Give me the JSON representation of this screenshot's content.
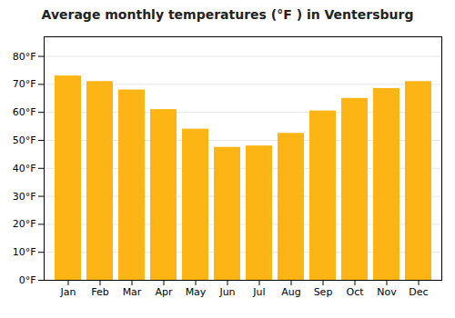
{
  "chart_data": {
    "type": "bar",
    "title": "Average monthly temperatures (°F ) in Ventersburg",
    "categories": [
      "Jan",
      "Feb",
      "Mar",
      "Apr",
      "May",
      "Jun",
      "Jul",
      "Aug",
      "Sep",
      "Oct",
      "Nov",
      "Dec"
    ],
    "values": [
      73,
      71,
      68,
      61,
      54,
      47.5,
      48,
      52.5,
      60.5,
      65,
      68.5,
      71
    ],
    "color": "#FDB515",
    "ylim": [
      0,
      87
    ],
    "yticks": [
      {
        "value": 0,
        "label": "0°F"
      },
      {
        "value": 10,
        "label": "10°F"
      },
      {
        "value": 20,
        "label": "20°F"
      },
      {
        "value": 30,
        "label": "30°F"
      },
      {
        "value": 40,
        "label": "40°F"
      },
      {
        "value": 50,
        "label": "50°F"
      },
      {
        "value": 60,
        "label": "60°F"
      },
      {
        "value": 70,
        "label": "70°F"
      },
      {
        "value": 80,
        "label": "80°F"
      }
    ],
    "grid": true
  }
}
